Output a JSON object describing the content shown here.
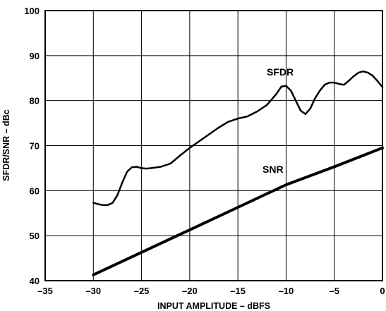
{
  "chart_data": {
    "type": "line",
    "title": "",
    "xlabel": "INPUT AMPLITUDE – dBFS",
    "ylabel": "SFDR/SNR – dBc",
    "xlim": [
      -35,
      0
    ],
    "ylim": [
      40,
      100
    ],
    "xticks": [
      "–35",
      "–30",
      "–25",
      "–20",
      "–15",
      "–10",
      "–5",
      "0"
    ],
    "yticks": [
      "40",
      "50",
      "60",
      "70",
      "80",
      "90",
      "100"
    ],
    "grid": true,
    "legend": "none",
    "series": [
      {
        "name": "SFDR",
        "x": [
          -30,
          -29.5,
          -29,
          -28.5,
          -28,
          -27.5,
          -27,
          -26.5,
          -26,
          -25.5,
          -25,
          -24.5,
          -24,
          -23,
          -22,
          -21,
          -20,
          -19,
          -18,
          -17,
          -16,
          -15,
          -14,
          -13,
          -12,
          -11,
          -10.5,
          -10,
          -9.5,
          -9,
          -8.5,
          -8,
          -7.5,
          -7,
          -6.5,
          -6,
          -5.5,
          -5,
          -4.5,
          -4,
          -3.5,
          -3,
          -2.5,
          -2,
          -1.5,
          -1,
          -0.5,
          0
        ],
        "y": [
          57.3,
          57.0,
          56.8,
          56.8,
          57.3,
          59.0,
          61.8,
          64.2,
          65.2,
          65.3,
          65.0,
          64.9,
          65.0,
          65.3,
          66.0,
          67.8,
          69.5,
          71.0,
          72.5,
          74.0,
          75.3,
          76.0,
          76.5,
          77.6,
          79.0,
          81.5,
          83.1,
          83.3,
          82.2,
          80.0,
          77.8,
          77.0,
          78.2,
          80.5,
          82.2,
          83.5,
          84.0,
          84.0,
          83.7,
          83.5,
          84.4,
          85.4,
          86.2,
          86.5,
          86.2,
          85.5,
          84.3,
          83.0
        ],
        "color": "#000000"
      },
      {
        "name": "SNR",
        "x": [
          -30,
          -25,
          -20,
          -15,
          -10,
          -5,
          0
        ],
        "y": [
          41.3,
          46.3,
          51.3,
          56.3,
          61.3,
          65.3,
          69.5
        ],
        "color": "#000000"
      }
    ]
  }
}
